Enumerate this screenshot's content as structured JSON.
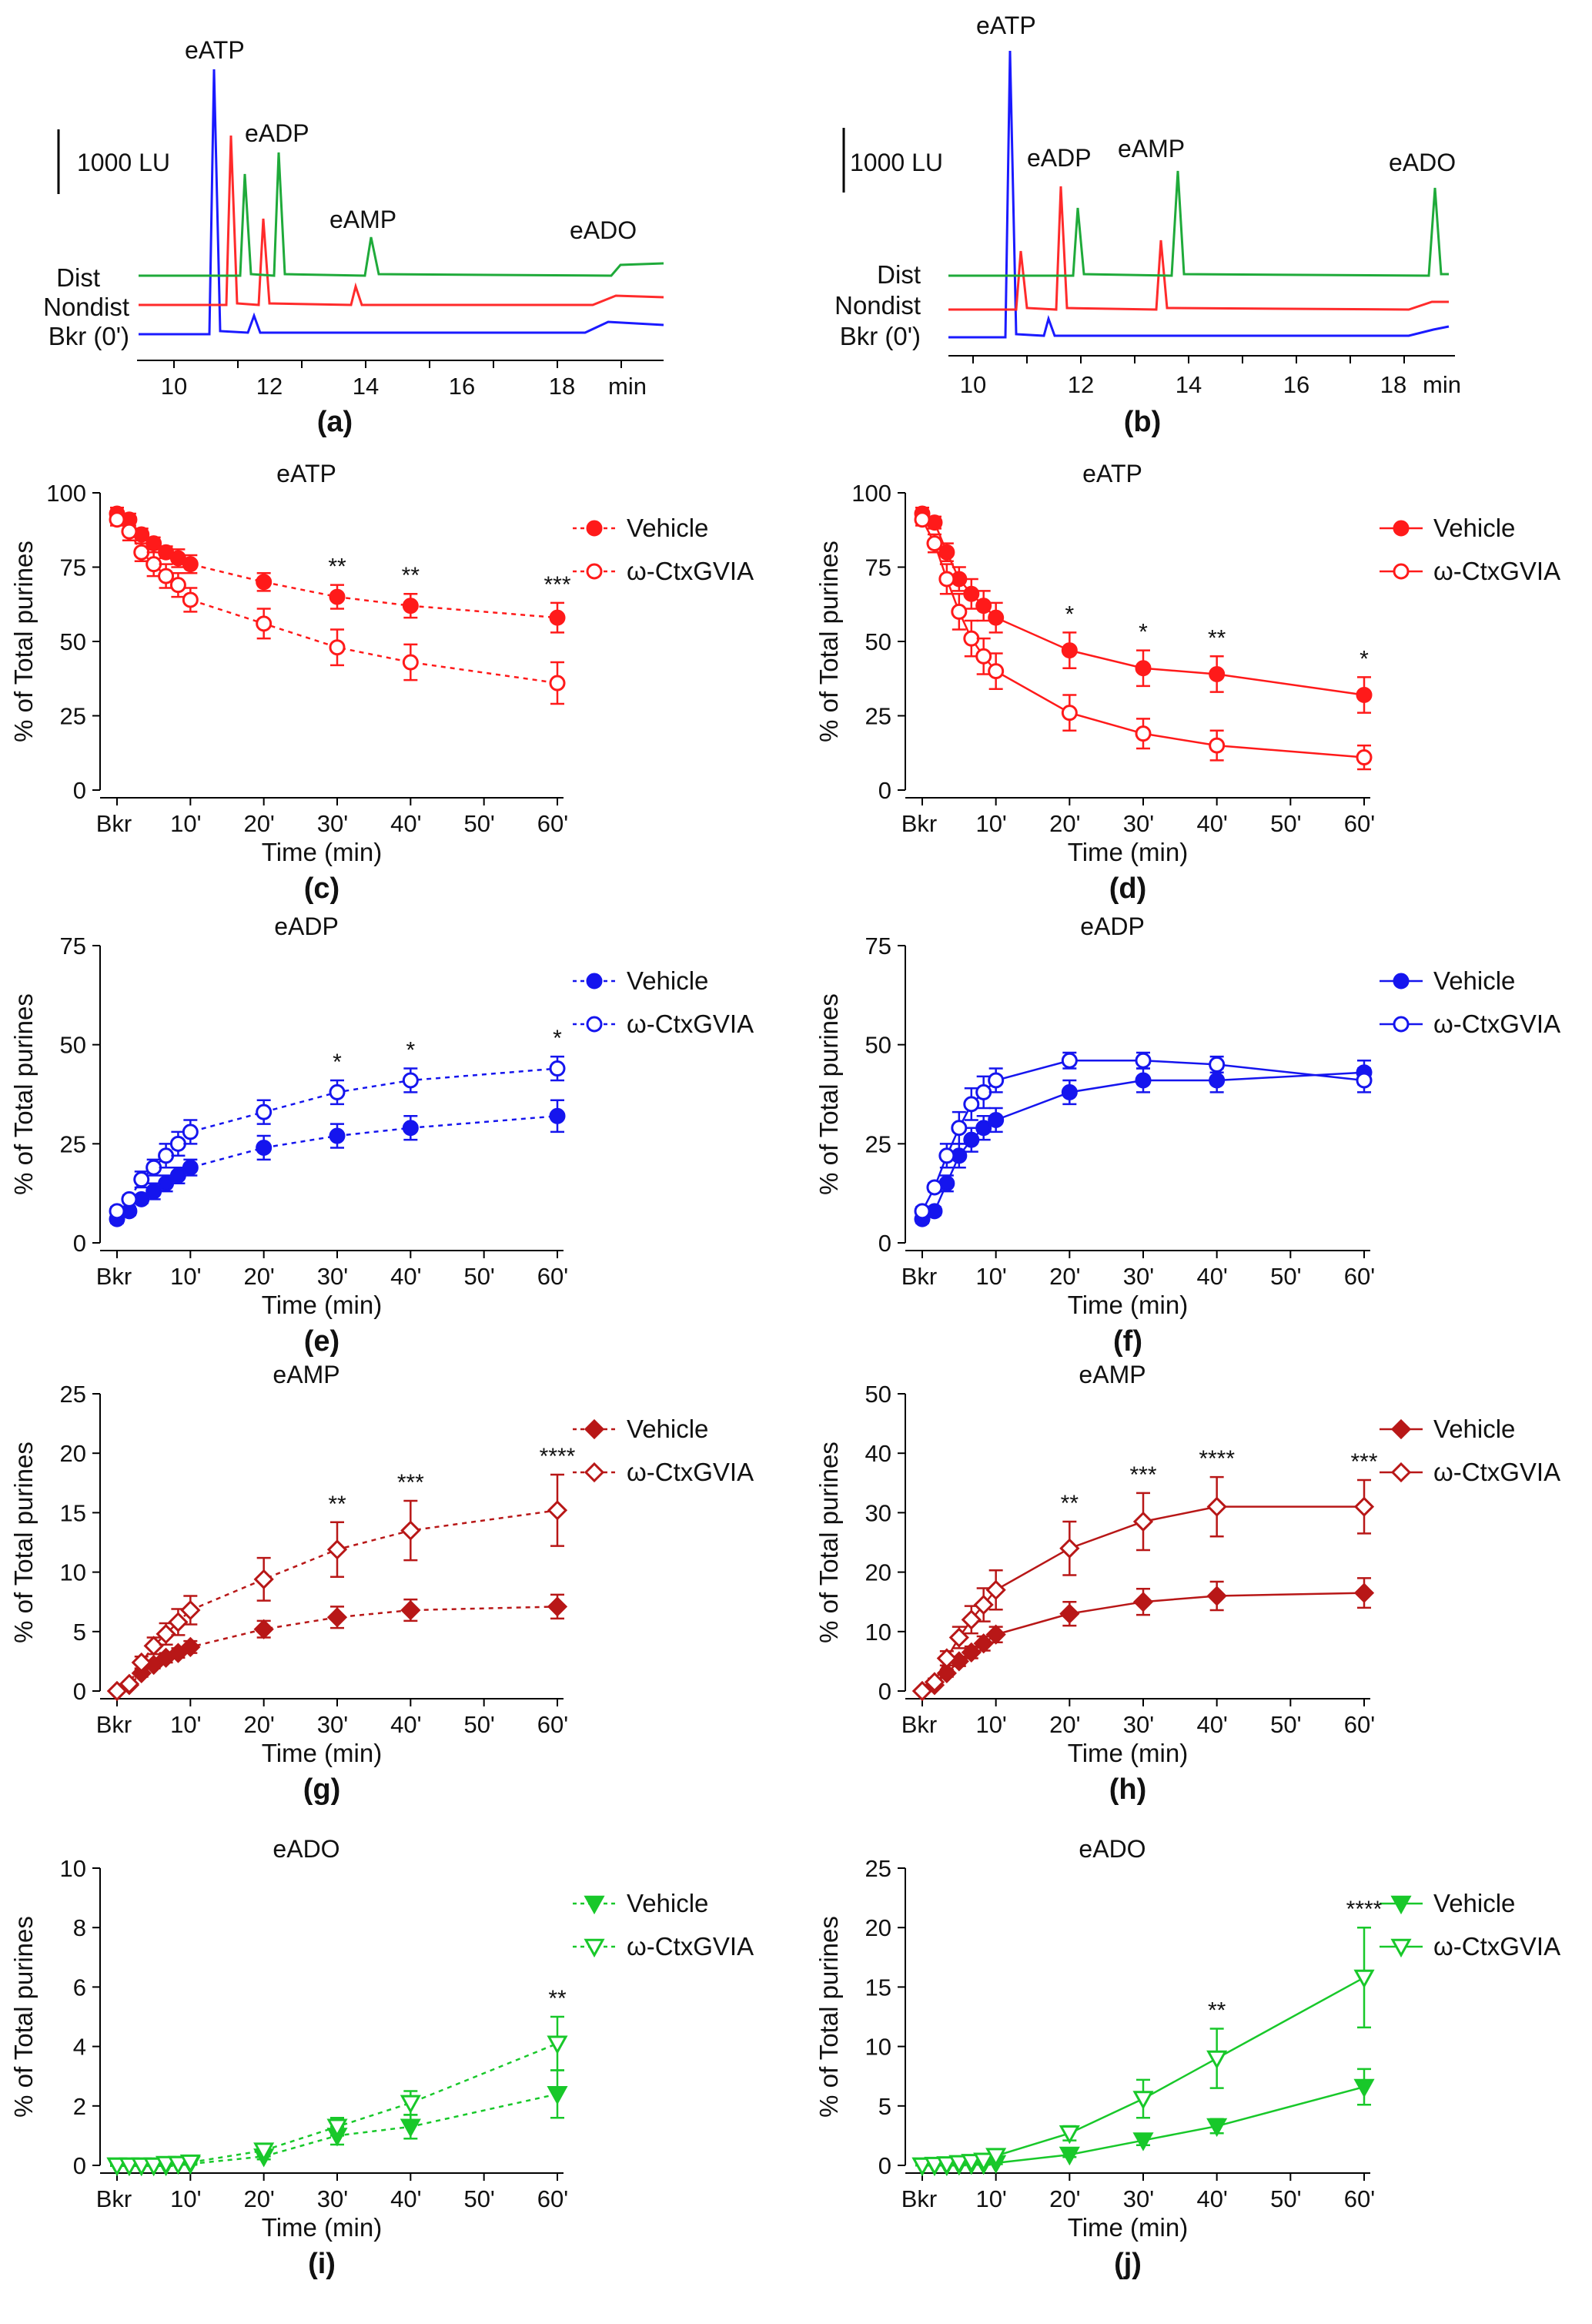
{
  "figure": {
    "chromatograms": [
      {
        "label": "(a)",
        "scale_label": "1000 LU",
        "xlabel": "min",
        "xticks": [
          "10",
          "12",
          "14",
          "16",
          "18"
        ],
        "trace_labels": [
          "Dist",
          "Nondist",
          "Bkr (0')"
        ],
        "peaks": [
          "eATP",
          "eADP",
          "eAMP",
          "eADO"
        ],
        "colors": {
          "dist": "#1faa3a",
          "nondist": "#ff2b2b",
          "bkr": "#1a1aff"
        }
      },
      {
        "label": "(b)",
        "scale_label": "1000 LU",
        "xlabel": "min",
        "xticks": [
          "10",
          "12",
          "14",
          "16",
          "18"
        ],
        "trace_labels": [
          "Dist",
          "Nondist",
          "Bkr (0')"
        ],
        "peaks": [
          "eATP",
          "eADP",
          "eAMP",
          "eADO"
        ],
        "colors": {
          "dist": "#1faa3a",
          "nondist": "#ff2b2b",
          "bkr": "#1a1aff"
        }
      }
    ]
  },
  "chart_data": [
    {
      "id": "c",
      "label": "(c)",
      "type": "line",
      "title": "eATP",
      "xlabel": "Time  (min)",
      "ylabel": "% of Total  purines",
      "ylim": [
        0,
        100
      ],
      "yticks": [
        0,
        25,
        50,
        75,
        100
      ],
      "xticks": [
        "Bkr",
        "10'",
        "20'",
        "30'",
        "40'",
        "50'",
        "60'"
      ],
      "x": [
        0,
        1.67,
        3.33,
        5,
        6.67,
        8.33,
        10,
        20,
        30,
        40,
        60
      ],
      "color": "#ff1a1a",
      "marker": "circle",
      "dashed": true,
      "series": [
        {
          "name": "Vehicle",
          "values": [
            93,
            91,
            86,
            83,
            80,
            78,
            76,
            70,
            65,
            62,
            58
          ],
          "errors": [
            2,
            2,
            2,
            2,
            2,
            3,
            3,
            3,
            4,
            4,
            5
          ]
        },
        {
          "name": "ω-CtxGVIA",
          "values": [
            91,
            87,
            80,
            76,
            72,
            69,
            64,
            56,
            48,
            43,
            36
          ],
          "errors": [
            2,
            3,
            3,
            4,
            4,
            4,
            4,
            5,
            6,
            6,
            7
          ]
        }
      ],
      "significance": [
        {
          "x": 30,
          "text": "**"
        },
        {
          "x": 40,
          "text": "**"
        },
        {
          "x": 60,
          "text": "***"
        }
      ]
    },
    {
      "id": "d",
      "label": "(d)",
      "type": "line",
      "title": "eATP",
      "xlabel": "Time  (min)",
      "ylabel": "% of Total  purines",
      "ylim": [
        0,
        100
      ],
      "yticks": [
        0,
        25,
        50,
        75,
        100
      ],
      "xticks": [
        "Bkr",
        "10'",
        "20'",
        "30'",
        "40'",
        "50'",
        "60'"
      ],
      "x": [
        0,
        1.67,
        3.33,
        5,
        6.67,
        8.33,
        10,
        20,
        30,
        40,
        60
      ],
      "color": "#ff1a1a",
      "marker": "circle",
      "dashed": false,
      "series": [
        {
          "name": "Vehicle",
          "values": [
            93,
            90,
            80,
            71,
            66,
            62,
            58,
            47,
            41,
            39,
            32
          ],
          "errors": [
            2,
            2,
            3,
            4,
            5,
            5,
            5,
            6,
            6,
            6,
            6
          ]
        },
        {
          "name": "ω-CtxGVIA",
          "values": [
            91,
            83,
            71,
            60,
            51,
            45,
            40,
            26,
            19,
            15,
            11
          ],
          "errors": [
            2,
            3,
            5,
            6,
            6,
            6,
            6,
            6,
            5,
            5,
            4
          ]
        }
      ],
      "significance": [
        {
          "x": 20,
          "text": "*"
        },
        {
          "x": 30,
          "text": "*"
        },
        {
          "x": 40,
          "text": "**"
        },
        {
          "x": 60,
          "text": "*"
        }
      ]
    },
    {
      "id": "e",
      "label": "(e)",
      "type": "line",
      "title": "eADP",
      "xlabel": "Time  (min)",
      "ylabel": "% of Total  purines",
      "ylim": [
        0,
        75
      ],
      "yticks": [
        0,
        25,
        50,
        75
      ],
      "xticks": [
        "Bkr",
        "10'",
        "20'",
        "30'",
        "40'",
        "50'",
        "60'"
      ],
      "x": [
        0,
        1.67,
        3.33,
        5,
        6.67,
        8.33,
        10,
        20,
        30,
        40,
        60
      ],
      "color": "#1515ee",
      "marker": "circle",
      "dashed": true,
      "series": [
        {
          "name": "Vehicle",
          "values": [
            6,
            8,
            11,
            13,
            15,
            17,
            19,
            24,
            27,
            29,
            32
          ],
          "errors": [
            1,
            1,
            1,
            2,
            2,
            2,
            2,
            3,
            3,
            3,
            4
          ]
        },
        {
          "name": "ω-CtxGVIA",
          "values": [
            8,
            11,
            16,
            19,
            22,
            25,
            28,
            33,
            38,
            41,
            44
          ],
          "errors": [
            1,
            1,
            2,
            2,
            3,
            3,
            3,
            3,
            3,
            3,
            3
          ]
        }
      ],
      "significance": [
        {
          "x": 30,
          "text": "*"
        },
        {
          "x": 40,
          "text": "*"
        },
        {
          "x": 60,
          "text": "*"
        }
      ]
    },
    {
      "id": "f",
      "label": "(f)",
      "type": "line",
      "title": "eADP",
      "xlabel": "Time  (min)",
      "ylabel": "% of Total  purines",
      "ylim": [
        0,
        75
      ],
      "yticks": [
        0,
        25,
        50,
        75
      ],
      "xticks": [
        "Bkr",
        "10'",
        "20'",
        "30'",
        "40'",
        "50'",
        "60'"
      ],
      "x": [
        0,
        1.67,
        3.33,
        5,
        6.67,
        8.33,
        10,
        20,
        30,
        40,
        60
      ],
      "color": "#1515ee",
      "marker": "circle",
      "dashed": false,
      "series": [
        {
          "name": "Vehicle",
          "values": [
            6,
            8,
            15,
            22,
            26,
            29,
            31,
            38,
            41,
            41,
            43
          ],
          "errors": [
            1,
            1,
            2,
            3,
            3,
            3,
            3,
            3,
            3,
            3,
            3
          ]
        },
        {
          "name": "ω-CtxGVIA",
          "values": [
            8,
            14,
            22,
            29,
            35,
            38,
            41,
            46,
            46,
            45,
            41
          ],
          "errors": [
            1,
            1,
            3,
            4,
            4,
            4,
            3,
            2,
            2,
            2,
            3
          ]
        }
      ],
      "significance": []
    },
    {
      "id": "g",
      "label": "(g)",
      "type": "line",
      "title": "eAMP",
      "xlabel": "Time  (min)",
      "ylabel": "% of Total  purines",
      "ylim": [
        0,
        25
      ],
      "yticks": [
        0,
        5,
        10,
        15,
        20,
        25
      ],
      "xticks": [
        "Bkr",
        "10'",
        "20'",
        "30'",
        "40'",
        "50'",
        "60'"
      ],
      "x": [
        0,
        1.67,
        3.33,
        5,
        6.67,
        8.33,
        10,
        20,
        30,
        40,
        60
      ],
      "color": "#b81717",
      "marker": "diamond",
      "dashed": true,
      "series": [
        {
          "name": "Vehicle",
          "values": [
            0,
            0.5,
            1.5,
            2.2,
            2.8,
            3.2,
            3.7,
            5.2,
            6.2,
            6.8,
            7.1
          ],
          "errors": [
            0.1,
            0.2,
            0.3,
            0.3,
            0.4,
            0.4,
            0.5,
            0.7,
            0.9,
            0.9,
            1.0
          ]
        },
        {
          "name": "ω-CtxGVIA",
          "values": [
            0,
            0.6,
            2.4,
            3.8,
            4.8,
            5.8,
            6.8,
            9.4,
            11.9,
            13.5,
            15.2
          ],
          "errors": [
            0.1,
            0.2,
            0.5,
            0.7,
            0.9,
            1.1,
            1.2,
            1.8,
            2.3,
            2.5,
            3.0
          ]
        }
      ],
      "significance": [
        {
          "x": 30,
          "text": "**"
        },
        {
          "x": 40,
          "text": "***"
        },
        {
          "x": 60,
          "text": "****"
        }
      ]
    },
    {
      "id": "h",
      "label": "(h)",
      "type": "line",
      "title": "eAMP",
      "xlabel": "Time  (min)",
      "ylabel": "% of Total  purines",
      "ylim": [
        0,
        50
      ],
      "yticks": [
        0,
        10,
        20,
        30,
        40,
        50
      ],
      "xticks": [
        "Bkr",
        "10'",
        "20'",
        "30'",
        "40'",
        "50'",
        "60'"
      ],
      "x": [
        0,
        1.67,
        3.33,
        5,
        6.67,
        8.33,
        10,
        20,
        30,
        40,
        60
      ],
      "color": "#b81717",
      "marker": "diamond",
      "dashed": false,
      "series": [
        {
          "name": "Vehicle",
          "values": [
            0,
            1,
            3,
            5,
            6.5,
            8,
            9.5,
            13,
            15,
            16,
            16.5
          ],
          "errors": [
            0.2,
            0.4,
            0.6,
            0.8,
            1,
            1.2,
            1.3,
            2,
            2.2,
            2.4,
            2.5
          ]
        },
        {
          "name": "ω-CtxGVIA",
          "values": [
            0,
            1.5,
            5.5,
            9,
            12,
            14.5,
            17,
            24,
            28.5,
            31,
            31
          ],
          "errors": [
            0.3,
            0.6,
            1.2,
            1.8,
            2.3,
            2.8,
            3.3,
            4.5,
            4.8,
            5,
            4.5
          ]
        }
      ],
      "significance": [
        {
          "x": 20,
          "text": "**"
        },
        {
          "x": 30,
          "text": "***"
        },
        {
          "x": 40,
          "text": "****"
        },
        {
          "x": 60,
          "text": "***"
        }
      ]
    },
    {
      "id": "i",
      "label": "(i)",
      "type": "line",
      "title": "eADO",
      "xlabel": "Time  (min)",
      "ylabel": "% of Total  purines",
      "ylim": [
        0,
        10
      ],
      "yticks": [
        0,
        2,
        4,
        6,
        8,
        10
      ],
      "xticks": [
        "Bkr",
        "10'",
        "20'",
        "30'",
        "40'",
        "50'",
        "60'"
      ],
      "x": [
        0,
        1.67,
        3.33,
        5,
        6.67,
        8.33,
        10,
        20,
        30,
        40,
        60
      ],
      "color": "#18c82a",
      "marker": "triangle",
      "dashed": true,
      "series": [
        {
          "name": "Vehicle",
          "values": [
            0,
            0,
            0,
            0,
            0,
            0.05,
            0.05,
            0.3,
            1.0,
            1.3,
            2.4
          ],
          "errors": [
            0.02,
            0.02,
            0.02,
            0.02,
            0.02,
            0.03,
            0.03,
            0.1,
            0.3,
            0.4,
            0.8
          ]
        },
        {
          "name": "ω-CtxGVIA",
          "values": [
            0,
            0,
            0,
            0,
            0.05,
            0.05,
            0.1,
            0.5,
            1.3,
            2.1,
            4.1
          ],
          "errors": [
            0.02,
            0.02,
            0.02,
            0.02,
            0.03,
            0.03,
            0.05,
            0.2,
            0.3,
            0.4,
            0.9
          ]
        }
      ],
      "significance": [
        {
          "x": 60,
          "text": "**"
        }
      ]
    },
    {
      "id": "j",
      "label": "(j)",
      "type": "line",
      "title": "eADO",
      "xlabel": "Time  (min)",
      "ylabel": "% of Total  purines",
      "ylim": [
        0,
        25
      ],
      "yticks": [
        0,
        5,
        10,
        15,
        20,
        25
      ],
      "xticks": [
        "Bkr",
        "10'",
        "20'",
        "30'",
        "40'",
        "50'",
        "60'"
      ],
      "x": [
        0,
        1.67,
        3.33,
        5,
        6.67,
        8.33,
        10,
        20,
        30,
        40,
        60
      ],
      "color": "#18c82a",
      "marker": "triangle",
      "dashed": false,
      "series": [
        {
          "name": "Vehicle",
          "values": [
            0,
            0,
            0,
            0.05,
            0.1,
            0.1,
            0.2,
            0.9,
            2.1,
            3.3,
            6.6
          ],
          "errors": [
            0.02,
            0.02,
            0.02,
            0.05,
            0.05,
            0.05,
            0.1,
            0.2,
            0.4,
            0.6,
            1.5
          ]
        },
        {
          "name": "ω-CtxGVIA",
          "values": [
            0,
            0.05,
            0.1,
            0.2,
            0.3,
            0.4,
            0.8,
            2.7,
            5.6,
            9.0,
            15.8
          ],
          "errors": [
            0.02,
            0.05,
            0.05,
            0.1,
            0.1,
            0.2,
            0.3,
            0.6,
            1.6,
            2.5,
            4.2
          ]
        }
      ],
      "significance": [
        {
          "x": 40,
          "text": "**"
        },
        {
          "x": 60,
          "text": "****"
        }
      ]
    }
  ]
}
